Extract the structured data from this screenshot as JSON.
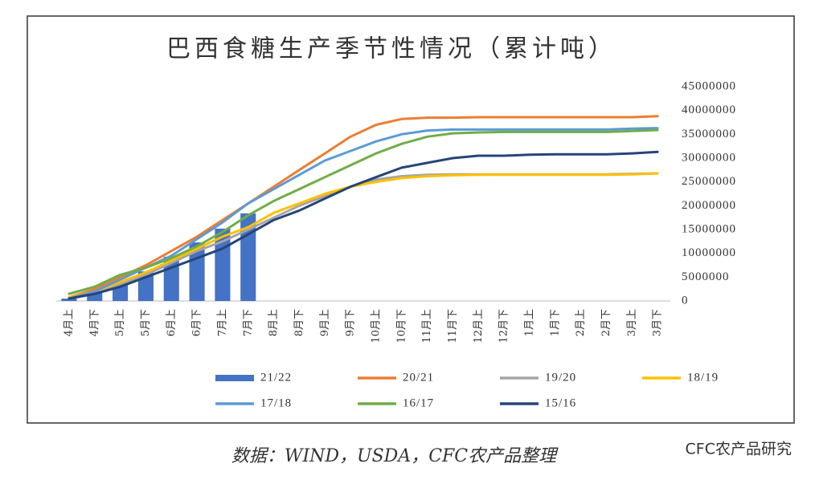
{
  "chart_data": {
    "type": "line",
    "title": "巴西食糖生产季节性情况（累计吨）",
    "categories": [
      "4月上",
      "4月下",
      "5月上",
      "5月下",
      "6月上",
      "6月下",
      "7月上",
      "7月下",
      "8月上",
      "8月下",
      "9月上",
      "9月下",
      "10月上",
      "10月下",
      "11月上",
      "11月下",
      "12月上",
      "12月下",
      "1月上",
      "1月下",
      "2月上",
      "2月下",
      "3月上",
      "3月下"
    ],
    "ylim": [
      0,
      45000000
    ],
    "yticks": [
      0,
      5000000,
      10000000,
      15000000,
      20000000,
      25000000,
      30000000,
      35000000,
      40000000,
      45000000
    ],
    "series": [
      {
        "name": "21/22",
        "type": "bar",
        "color": "#4472c4",
        "values": [
          500000,
          1700000,
          3900000,
          6200000,
          9300000,
          12300000,
          15200000,
          18400000,
          null,
          null,
          null,
          null,
          null,
          null,
          null,
          null,
          null,
          null,
          null,
          null,
          null,
          null,
          null,
          null
        ]
      },
      {
        "name": "20/21",
        "color": "#ed7d31",
        "values": [
          800000,
          2500000,
          5000000,
          7500000,
          10500000,
          13500000,
          17000000,
          20500000,
          24000000,
          27500000,
          31000000,
          34500000,
          37000000,
          38200000,
          38500000,
          38500000,
          38600000,
          38600000,
          38600000,
          38600000,
          38600000,
          38600000,
          38600000,
          38800000
        ]
      },
      {
        "name": "19/20",
        "color": "#a5a5a5",
        "values": [
          500000,
          1800000,
          3500000,
          5500000,
          8000000,
          10500000,
          12500000,
          15000000,
          17500000,
          20000000,
          22000000,
          24000000,
          25500000,
          26200000,
          26500000,
          26600000,
          26600000,
          26600000,
          26600000,
          26600000,
          26600000,
          26600000,
          26700000,
          26800000
        ]
      },
      {
        "name": "18/19",
        "color": "#ffc000",
        "values": [
          800000,
          2000000,
          4000000,
          6000000,
          8500000,
          11000000,
          13500000,
          15500000,
          18500000,
          20500000,
          22500000,
          24000000,
          25000000,
          25800000,
          26200000,
          26400000,
          26500000,
          26500000,
          26500000,
          26500000,
          26500000,
          26500000,
          26600000,
          26800000
        ]
      },
      {
        "name": "17/18",
        "color": "#5b9bd5",
        "values": [
          500000,
          2000000,
          4500000,
          7000000,
          9500000,
          13000000,
          16500000,
          20500000,
          23500000,
          26500000,
          29500000,
          31500000,
          33500000,
          35000000,
          35800000,
          36000000,
          36000000,
          36000000,
          36000000,
          36000000,
          36000000,
          36000000,
          36200000,
          36300000
        ]
      },
      {
        "name": "16/17",
        "color": "#70ad47",
        "values": [
          1500000,
          3000000,
          5500000,
          7000000,
          9000000,
          11500000,
          14500000,
          18000000,
          21000000,
          23500000,
          26000000,
          28500000,
          31000000,
          33000000,
          34500000,
          35200000,
          35400000,
          35500000,
          35500000,
          35500000,
          35500000,
          35500000,
          35700000,
          35900000
        ]
      },
      {
        "name": "15/16",
        "color": "#264478",
        "values": [
          500000,
          1500000,
          3000000,
          5000000,
          7000000,
          9000000,
          11000000,
          14000000,
          17000000,
          19000000,
          21500000,
          24000000,
          26000000,
          28000000,
          29000000,
          30000000,
          30500000,
          30500000,
          30700000,
          30800000,
          30800000,
          30800000,
          31000000,
          31300000
        ]
      }
    ]
  },
  "source": "数据：WIND，USDA，CFC农产品整理",
  "watermark": "CFC农产品研究"
}
